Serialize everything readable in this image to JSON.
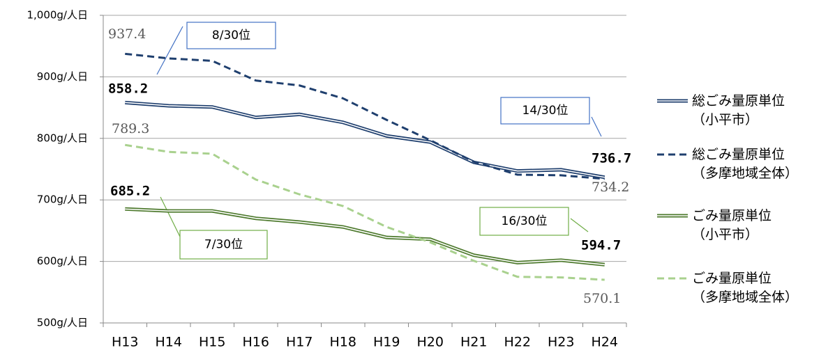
{
  "chart_data": {
    "type": "line",
    "categories": [
      "H13",
      "H14",
      "H15",
      "H16",
      "H17",
      "H18",
      "H19",
      "H20",
      "H21",
      "H22",
      "H23",
      "H24"
    ],
    "series": [
      {
        "name": "総ごみ量原単位\n（小平市）",
        "color": "#1f3f6e",
        "style": "double",
        "values": [
          858.2,
          853,
          851,
          834,
          839,
          826,
          804,
          794,
          761,
          747,
          749,
          736.7
        ]
      },
      {
        "name": "総ごみ量原単位\n（多摩地域全体）",
        "color": "#1f3f6e",
        "style": "dashed",
        "values": [
          937.4,
          930,
          926,
          894,
          886,
          865,
          830,
          797,
          762,
          741,
          740,
          734.2
        ]
      },
      {
        "name": "ごみ量原単位\n（小平市）",
        "color": "#4e7a2e",
        "style": "double",
        "values": [
          685.2,
          682,
          682,
          670,
          664,
          656,
          639,
          636,
          610,
          598,
          602,
          594.7
        ]
      },
      {
        "name": "ごみ量原単位\n（多摩地域全体）",
        "color": "#a9d18e",
        "style": "dashed",
        "values": [
          789.3,
          778,
          775,
          733,
          709,
          690,
          656,
          631,
          601,
          575,
          574,
          570.1
        ]
      }
    ],
    "ylim": [
      500,
      1000
    ],
    "yticks": [
      {
        "value": 500,
        "label": "500g/人日"
      },
      {
        "value": 600,
        "label": "600g/人日"
      },
      {
        "value": 700,
        "label": "700g/人日"
      },
      {
        "value": 800,
        "label": "800g/人日"
      },
      {
        "value": 900,
        "label": "900g/人日"
      },
      {
        "value": 1000,
        "label": "1,000g/人日"
      }
    ],
    "grid": true,
    "legend": "right",
    "annotations": [
      "8/30位",
      "14/30位",
      "7/30位",
      "16/30位"
    ]
  }
}
